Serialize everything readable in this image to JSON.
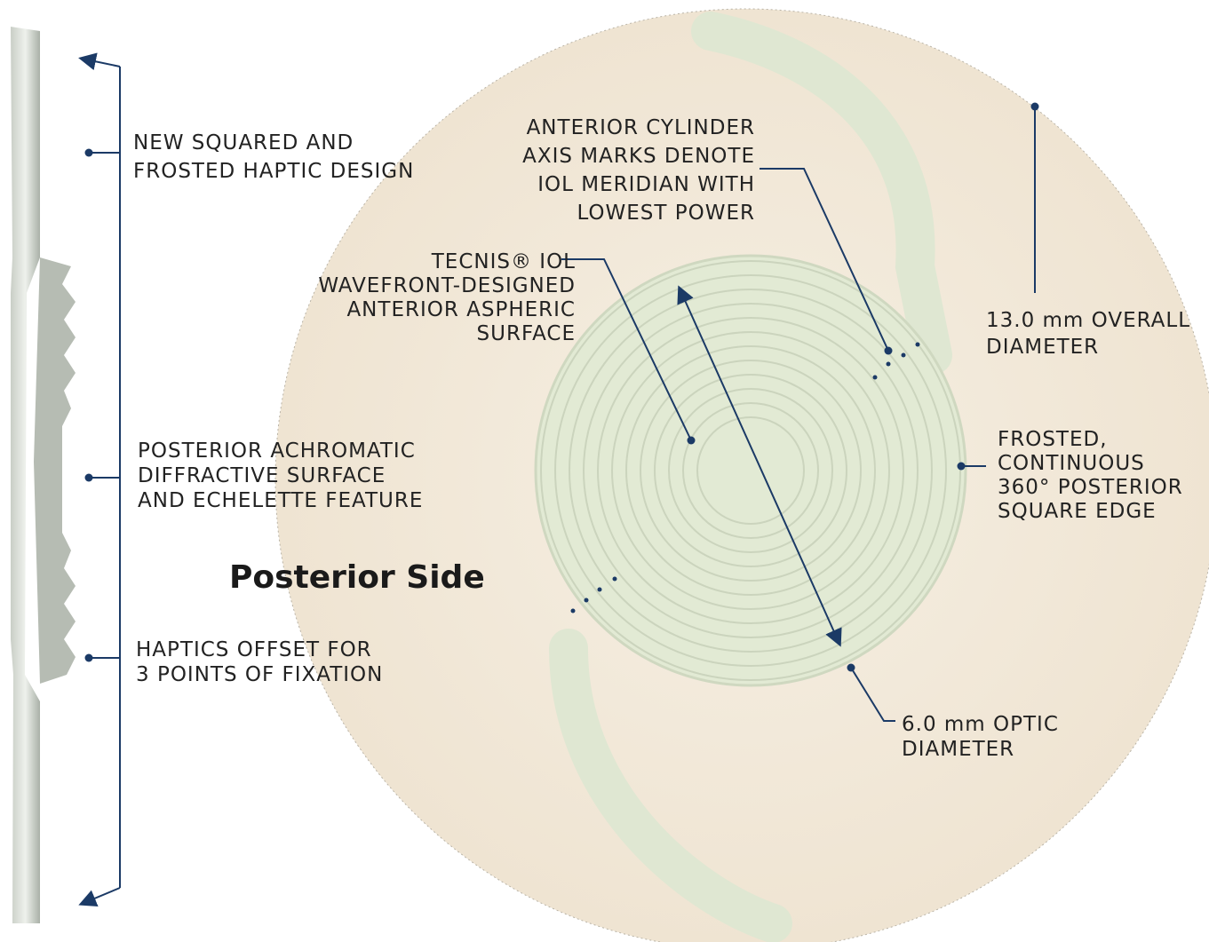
{
  "side_title": "Posterior Side",
  "left_labels": [
    {
      "lines": [
        "NEW SQUARED AND",
        "FROSTED HAPTIC DESIGN"
      ]
    },
    {
      "lines": [
        "POSTERIOR ACHROMATIC",
        "DIFFRACTIVE SURFACE",
        "AND ECHELETTE FEATURE"
      ]
    },
    {
      "lines": [
        "HAPTICS OFFSET FOR",
        "3 POINTS OF FIXATION"
      ]
    }
  ],
  "right_labels": [
    {
      "lines": [
        "ANTERIOR CYLINDER",
        "AXIS MARKS DENOTE",
        "IOL MERIDIAN WITH",
        "LOWEST POWER"
      ]
    },
    {
      "lines": [
        "TECNIS® IOL",
        "WAVEFRONT-DESIGNED",
        "ANTERIOR ASPHERIC",
        "SURFACE"
      ]
    },
    {
      "lines": [
        "13.0 mm OVERALL",
        "DIAMETER"
      ]
    },
    {
      "lines": [
        "FROSTED,",
        "CONTINUOUS",
        "360° POSTERIOR",
        "SQUARE EDGE"
      ]
    },
    {
      "lines": [
        "6.0 mm OPTIC",
        "DIAMETER"
      ]
    }
  ]
}
